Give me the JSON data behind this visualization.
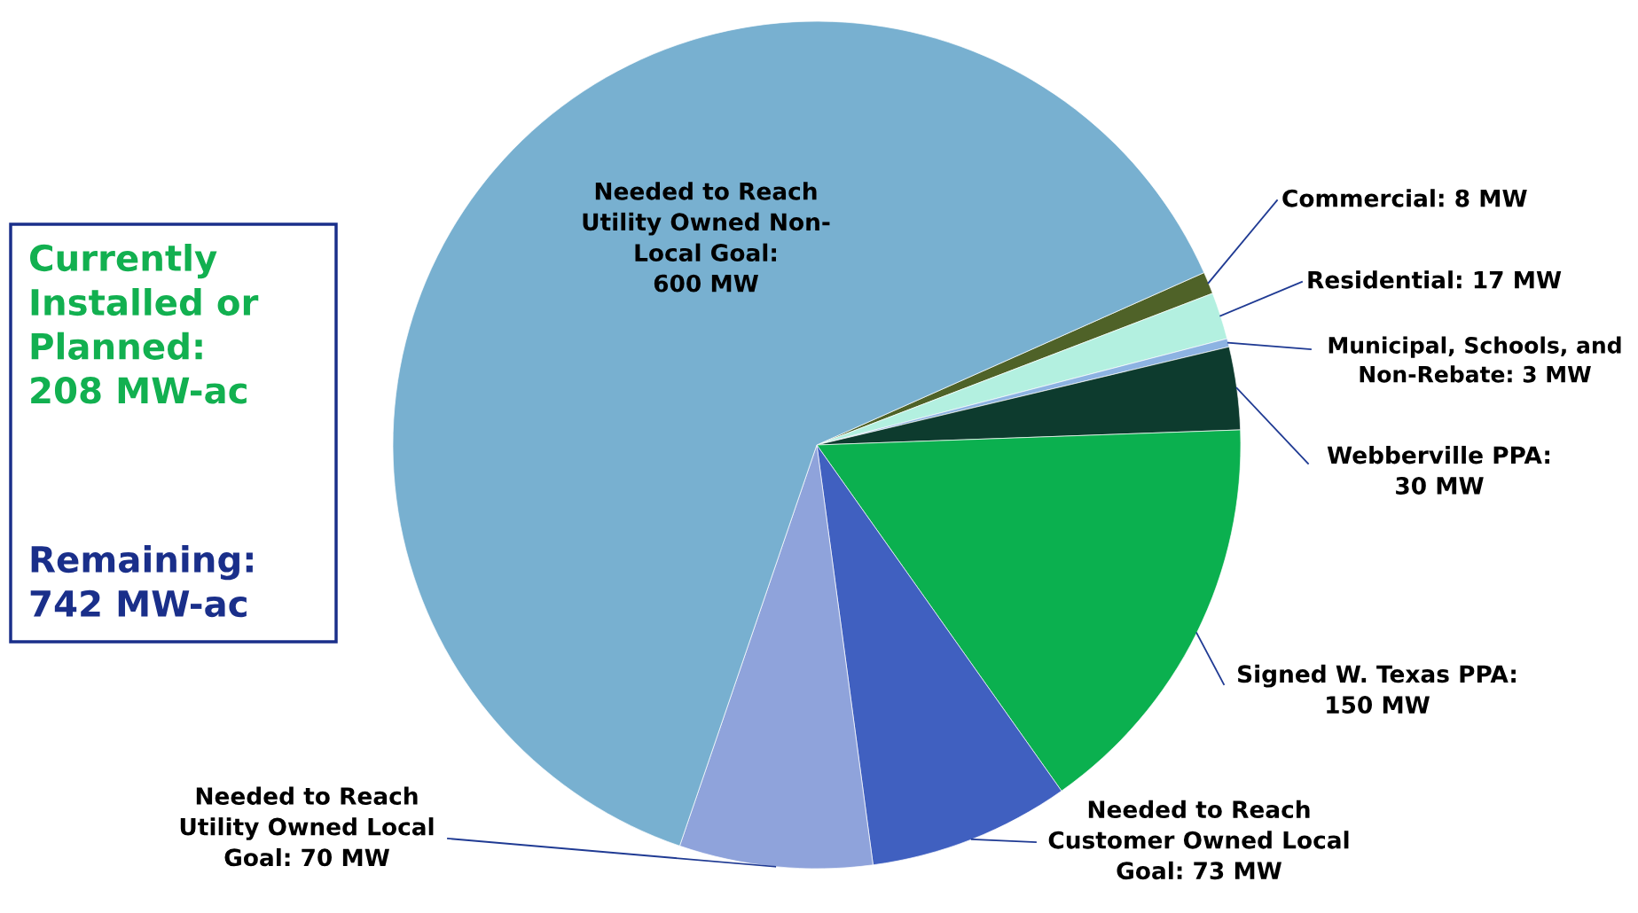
{
  "chart_data": {
    "type": "pie",
    "categories": [
      "Commercial: 8 MW",
      "Residential: 17 MW",
      "Municipal, Schools, and\nNon-Rebate: 3 MW",
      "Webberville PPA:\n30 MW",
      "Signed W. Texas PPA:\n150 MW",
      "Needed to Reach\nCustomer Owned Local\nGoal: 73 MW",
      "Needed to Reach\nUtility Owned Local\nGoal: 70 MW",
      "Needed to Reach\nUtility Owned Non-\nLocal Goal:\n600 MW"
    ],
    "values": [
      8,
      17,
      3,
      30,
      150,
      73,
      70,
      600
    ],
    "colors": [
      "#4f6228",
      "#b3f0e0",
      "#8db3e2",
      "#0d3b2e",
      "#0bb04f",
      "#4060c0",
      "#8fa3db",
      "#78b0d0"
    ],
    "annotations": [
      "Currently\nInstalled or\nPlanned:\n208 MW-ac",
      "Remaining:\n742 MW-ac"
    ],
    "legend": false
  }
}
